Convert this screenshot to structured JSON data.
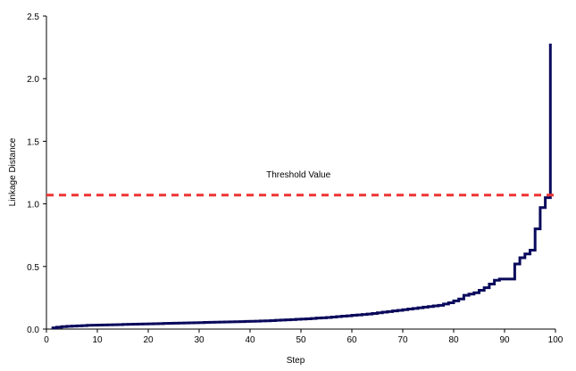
{
  "chart_data": {
    "type": "line",
    "title": "",
    "xlabel": "Step",
    "ylabel": "Linkage Distance",
    "xlim": [
      0,
      100
    ],
    "ylim": [
      0,
      2.5
    ],
    "xticks": [
      0,
      10,
      20,
      30,
      40,
      50,
      60,
      70,
      80,
      90,
      100
    ],
    "yticks": [
      0.0,
      0.5,
      1.0,
      1.5,
      2.0,
      2.5
    ],
    "ytick_labels": [
      "0.0",
      "0.5",
      "1.0",
      "1.5",
      "2.0",
      "2.5"
    ],
    "grid": false,
    "series": [
      {
        "style": "step",
        "color": "#0a0a5c",
        "x": [
          1,
          2,
          3,
          4,
          5,
          6,
          7,
          8,
          9,
          10,
          11,
          12,
          13,
          14,
          15,
          16,
          17,
          18,
          19,
          20,
          21,
          22,
          23,
          24,
          25,
          26,
          27,
          28,
          29,
          30,
          31,
          32,
          33,
          34,
          35,
          36,
          37,
          38,
          39,
          40,
          41,
          42,
          43,
          44,
          45,
          46,
          47,
          48,
          49,
          50,
          51,
          52,
          53,
          54,
          55,
          56,
          57,
          58,
          59,
          60,
          61,
          62,
          63,
          64,
          65,
          66,
          67,
          68,
          69,
          70,
          71,
          72,
          73,
          74,
          75,
          76,
          77,
          78,
          79,
          80,
          81,
          82,
          83,
          84,
          85,
          86,
          87,
          88,
          89,
          90,
          91,
          92,
          93,
          94,
          95,
          96,
          97,
          98,
          99
        ],
        "y": [
          0.01,
          0.015,
          0.02,
          0.022,
          0.024,
          0.026,
          0.028,
          0.03,
          0.031,
          0.032,
          0.033,
          0.034,
          0.035,
          0.036,
          0.037,
          0.038,
          0.039,
          0.04,
          0.041,
          0.042,
          0.043,
          0.044,
          0.045,
          0.046,
          0.047,
          0.048,
          0.049,
          0.05,
          0.051,
          0.052,
          0.053,
          0.054,
          0.055,
          0.056,
          0.057,
          0.058,
          0.059,
          0.06,
          0.061,
          0.062,
          0.063,
          0.065,
          0.066,
          0.068,
          0.07,
          0.072,
          0.074,
          0.076,
          0.078,
          0.08,
          0.082,
          0.085,
          0.088,
          0.09,
          0.093,
          0.096,
          0.1,
          0.103,
          0.106,
          0.11,
          0.113,
          0.117,
          0.12,
          0.125,
          0.13,
          0.135,
          0.14,
          0.145,
          0.15,
          0.155,
          0.16,
          0.165,
          0.17,
          0.175,
          0.18,
          0.185,
          0.19,
          0.2,
          0.21,
          0.225,
          0.24,
          0.27,
          0.28,
          0.29,
          0.31,
          0.33,
          0.36,
          0.39,
          0.4,
          0.4,
          0.4,
          0.52,
          0.57,
          0.6,
          0.63,
          0.8,
          0.97,
          1.05,
          1.43
        ]
      }
    ],
    "final_jump_to": 2.28,
    "threshold": {
      "value": 1.07,
      "label": "Threshold Value",
      "color": "#ee3333"
    }
  }
}
